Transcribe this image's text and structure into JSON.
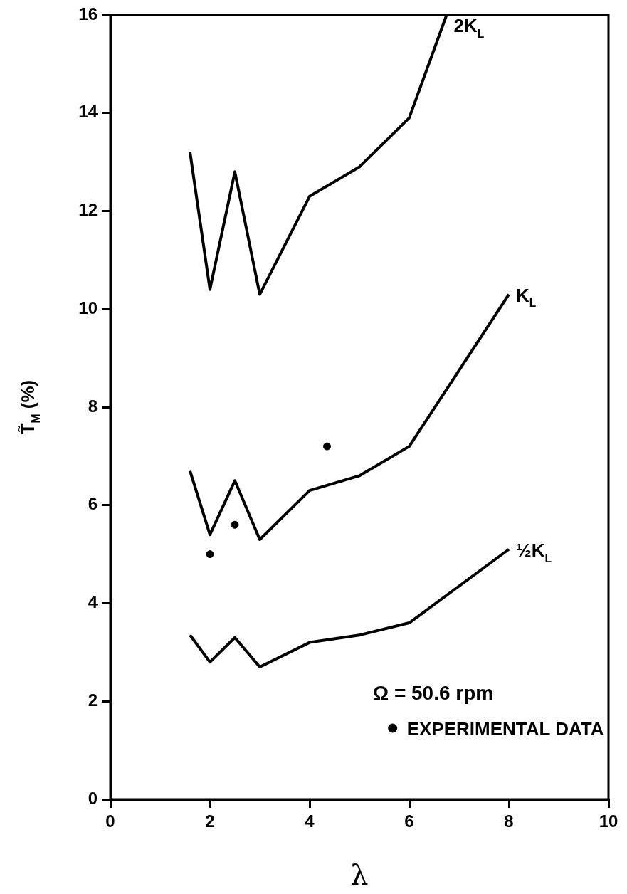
{
  "chart_data": {
    "type": "line",
    "xlabel": "λ",
    "ylabel": "T̃$_{M}$ (%)",
    "xlim": [
      0,
      10
    ],
    "xticks": [
      0,
      2,
      4,
      6,
      8,
      10
    ],
    "ylim": [
      0,
      16
    ],
    "yticks": [
      0,
      2,
      4,
      6,
      8,
      10,
      12,
      14,
      16
    ],
    "legend": "bottom right",
    "annotations": [
      "Ω = 50.6 rpm"
    ],
    "series": [
      {
        "name": "2K$_{L}$",
        "color": "#000000",
        "x": [
          1.6,
          2,
          2.5,
          3,
          4,
          5,
          6,
          6.75
        ],
        "values": [
          13.2,
          10.4,
          12.8,
          10.3,
          12.3,
          12.9,
          13.9,
          16
        ]
      },
      {
        "name": "K$_{L}$",
        "color": "#000000",
        "x": [
          1.6,
          2,
          2.5,
          3,
          4,
          5,
          6,
          8
        ],
        "values": [
          6.7,
          5.4,
          6.5,
          5.3,
          6.3,
          6.6,
          7.2,
          10.3
        ]
      },
      {
        "name": "½K$_{L}$",
        "color": "#000000",
        "x": [
          1.6,
          2,
          2.5,
          3,
          4,
          5,
          6,
          8
        ],
        "values": [
          3.35,
          2.8,
          3.3,
          2.7,
          3.2,
          3.35,
          3.6,
          5.1
        ]
      },
      {
        "name": "EXPERIMENTAL DATA",
        "type": "scatter",
        "marker": "circle",
        "color": "#000000",
        "x": [
          2,
          2.5,
          4.35
        ],
        "values": [
          5.0,
          5.6,
          7.2
        ]
      }
    ]
  }
}
